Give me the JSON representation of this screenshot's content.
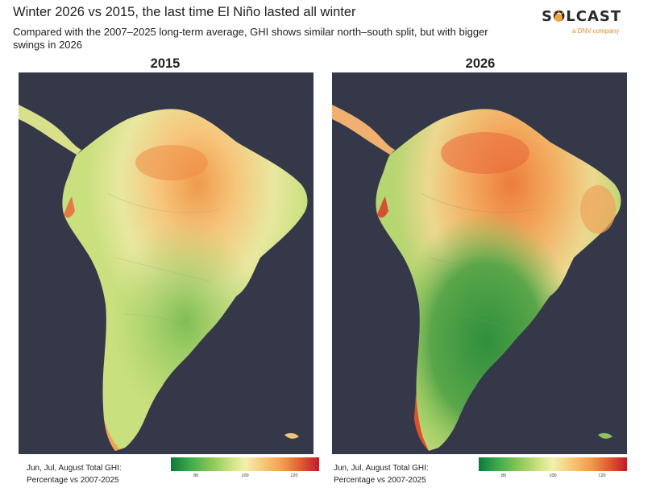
{
  "title": "Winter 2026 vs 2015, the last time El Niño lasted all winter",
  "subtitle": "Compared with the 2007–2025 long-term average, GHI shows similar north–south split, but with bigger swings in 2026",
  "logo": {
    "wordmark": "SOLCAST",
    "tagline": "a DNV company",
    "icon": "sun-icon"
  },
  "panels": [
    {
      "label": "2015",
      "legend_line1": "Jun, Jul, August Total GHI:",
      "legend_line2": "Percentage vs 2007-2025",
      "ticks": [
        "80",
        "100",
        "120"
      ]
    },
    {
      "label": "2026",
      "legend_line1": "Jun, Jul, August Total GHI:",
      "legend_line2": "Percentage vs 2007-2025",
      "ticks": [
        "80",
        "100",
        "120"
      ]
    }
  ],
  "colors": {
    "ocean": "#353849",
    "low": "#0b7a3a",
    "mid": "#f3efb0",
    "high": "#c4182a"
  },
  "colorbar_range": [
    70,
    130
  ]
}
